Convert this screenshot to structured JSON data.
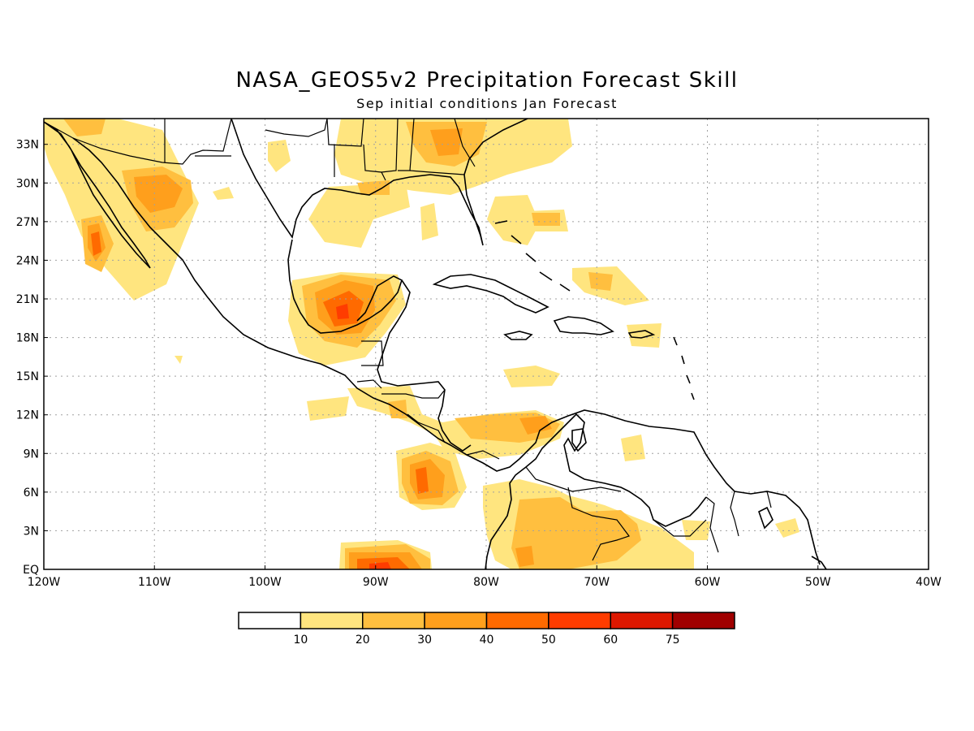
{
  "title": "NASA_GEOS5v2 Precipitation Forecast Skill",
  "subtitle": "Sep initial conditions  Jan Forecast",
  "map": {
    "region": "Central America / Caribbean / Gulf of Mexico",
    "lon_range": [
      -120,
      -40
    ],
    "lat_range": [
      0,
      35
    ],
    "lat_labels": [
      "33N",
      "30N",
      "27N",
      "24N",
      "21N",
      "18N",
      "15N",
      "12N",
      "9N",
      "6N",
      "3N",
      "EQ"
    ],
    "lon_labels": [
      "120W",
      "110W",
      "100W",
      "90W",
      "80W",
      "70W",
      "60W",
      "50W",
      "40W"
    ],
    "gridlines": "dotted"
  },
  "colorbar": {
    "levels": [
      "10",
      "20",
      "30",
      "40",
      "50",
      "60",
      "75"
    ],
    "colors": [
      "#ffffff",
      "#ffe57f",
      "#ffbf3f",
      "#ff9f1c",
      "#ff6a00",
      "#ff3c00",
      "#dd1800",
      "#a00000"
    ]
  },
  "chart_data": {
    "type": "heatmap",
    "title": "NASA_GEOS5v2 Precipitation Forecast Skill",
    "subtitle": "Sep initial conditions  Jan Forecast",
    "xlim": [
      -120,
      -40
    ],
    "ylim": [
      0,
      35
    ],
    "contour_levels": [
      10,
      20,
      30,
      40,
      50,
      60,
      75
    ],
    "skill_regions": [
      {
        "lon": -91.5,
        "lat": 20.5,
        "level": 50
      },
      {
        "lon": -86,
        "lat": 7,
        "level": 40
      },
      {
        "lon": -90,
        "lat": 1,
        "level": 50
      },
      {
        "lon": -115.5,
        "lat": 25,
        "level": 40
      },
      {
        "lon": -111,
        "lat": 29.5,
        "level": 30
      },
      {
        "lon": -82,
        "lat": 33,
        "level": 30
      },
      {
        "lon": -74,
        "lat": 11.5,
        "level": 30
      },
      {
        "lon": -73.5,
        "lat": 4,
        "level": 20
      }
    ]
  }
}
